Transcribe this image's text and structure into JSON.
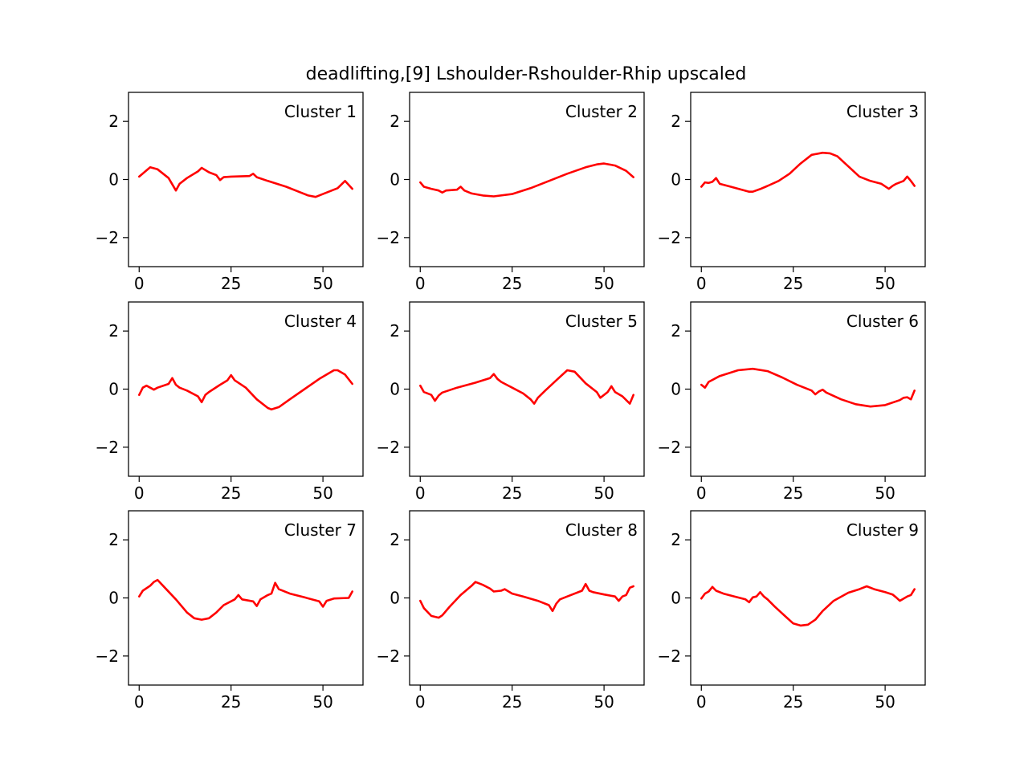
{
  "chart_data": {
    "type": "line",
    "title": "deadlifting,[9] Lshoulder-Rshoulder-Rhip upscaled",
    "series_color": "#ff0000",
    "xlim": [
      -2.9,
      60.9
    ],
    "ylim": [
      -3,
      3
    ],
    "xticks": [
      0,
      25,
      50
    ],
    "yticks": [
      2,
      0,
      -2
    ],
    "xtick_labels": [
      "0",
      "25",
      "50"
    ],
    "ytick_labels": [
      "2",
      "0",
      "−2"
    ],
    "grid": false,
    "panels": [
      {
        "label": "Cluster 1",
        "x": [
          0,
          3,
          5,
          8,
          10,
          11,
          13,
          16,
          17,
          19,
          21,
          22,
          23,
          25,
          30,
          31,
          32,
          35,
          40,
          44,
          46,
          48,
          50,
          54,
          56,
          58
        ],
        "y": [
          0.1,
          0.42,
          0.35,
          0.05,
          -0.38,
          -0.15,
          0.05,
          0.28,
          0.4,
          0.25,
          0.15,
          -0.02,
          0.08,
          0.1,
          0.12,
          0.2,
          0.08,
          -0.05,
          -0.25,
          -0.45,
          -0.55,
          -0.6,
          -0.5,
          -0.3,
          -0.05,
          -0.32
        ]
      },
      {
        "label": "Cluster 2",
        "x": [
          0,
          1,
          3,
          5,
          6,
          7,
          10,
          11,
          12,
          14,
          17,
          20,
          25,
          30,
          35,
          40,
          45,
          48,
          50,
          53,
          56,
          58
        ],
        "y": [
          -0.1,
          -0.25,
          -0.32,
          -0.38,
          -0.45,
          -0.38,
          -0.35,
          -0.25,
          -0.38,
          -0.48,
          -0.55,
          -0.58,
          -0.5,
          -0.3,
          -0.05,
          0.2,
          0.42,
          0.52,
          0.55,
          0.48,
          0.3,
          0.08
        ]
      },
      {
        "label": "Cluster 3",
        "x": [
          0,
          1,
          2,
          3,
          4,
          5,
          8,
          11,
          13,
          14,
          16,
          18,
          21,
          24,
          27,
          30,
          33,
          35,
          37,
          40,
          43,
          46,
          49,
          51,
          52,
          53,
          55,
          56,
          57,
          58
        ],
        "y": [
          -0.25,
          -0.1,
          -0.12,
          -0.08,
          0.05,
          -0.15,
          -0.25,
          -0.35,
          -0.42,
          -0.42,
          -0.33,
          -0.22,
          -0.05,
          0.2,
          0.55,
          0.85,
          0.92,
          0.9,
          0.8,
          0.45,
          0.1,
          -0.05,
          -0.15,
          -0.32,
          -0.22,
          -0.15,
          -0.05,
          0.1,
          -0.05,
          -0.22
        ]
      },
      {
        "label": "Cluster 4",
        "x": [
          0,
          1,
          2,
          4,
          5,
          8,
          9,
          10,
          11,
          13,
          16,
          17,
          18,
          19,
          22,
          24,
          25,
          26,
          29,
          32,
          35,
          36,
          38,
          41,
          45,
          49,
          53,
          54,
          56,
          58
        ],
        "y": [
          -0.2,
          0.05,
          0.12,
          -0.02,
          0.05,
          0.18,
          0.38,
          0.15,
          0.05,
          -0.05,
          -0.25,
          -0.45,
          -0.2,
          -0.1,
          0.15,
          0.3,
          0.48,
          0.3,
          0.05,
          -0.35,
          -0.65,
          -0.7,
          -0.62,
          -0.35,
          0.0,
          0.35,
          0.65,
          0.65,
          0.5,
          0.18
        ]
      },
      {
        "label": "Cluster 5",
        "x": [
          0,
          1,
          3,
          4,
          5,
          6,
          10,
          15,
          19,
          20,
          21,
          22,
          25,
          28,
          30,
          31,
          32,
          34,
          37,
          40,
          42,
          45,
          48,
          49,
          51,
          52,
          53,
          55,
          57,
          58
        ],
        "y": [
          0.12,
          -0.1,
          -0.2,
          -0.4,
          -0.22,
          -0.12,
          0.05,
          0.22,
          0.38,
          0.52,
          0.35,
          0.25,
          0.05,
          -0.15,
          -0.35,
          -0.5,
          -0.3,
          -0.05,
          0.3,
          0.65,
          0.6,
          0.2,
          -0.1,
          -0.3,
          -0.1,
          0.1,
          -0.1,
          -0.25,
          -0.5,
          -0.2
        ]
      },
      {
        "label": "Cluster 6",
        "x": [
          0,
          1,
          2,
          5,
          10,
          14,
          18,
          22,
          26,
          30,
          31,
          32,
          33,
          34,
          38,
          42,
          46,
          50,
          54,
          55,
          56,
          57,
          58
        ],
        "y": [
          0.15,
          0.05,
          0.25,
          0.45,
          0.65,
          0.7,
          0.62,
          0.4,
          0.15,
          -0.05,
          -0.18,
          -0.08,
          -0.02,
          -0.12,
          -0.35,
          -0.52,
          -0.6,
          -0.55,
          -0.38,
          -0.3,
          -0.28,
          -0.35,
          -0.05
        ]
      },
      {
        "label": "Cluster 7",
        "x": [
          0,
          1,
          3,
          4,
          5,
          7,
          10,
          13,
          15,
          17,
          19,
          21,
          23,
          26,
          27,
          28,
          31,
          32,
          33,
          35,
          36,
          37,
          38,
          41,
          45,
          49,
          50,
          51,
          53,
          57,
          58
        ],
        "y": [
          0.05,
          0.25,
          0.42,
          0.55,
          0.62,
          0.35,
          -0.05,
          -0.5,
          -0.7,
          -0.75,
          -0.7,
          -0.5,
          -0.25,
          -0.05,
          0.1,
          -0.05,
          -0.12,
          -0.28,
          -0.05,
          0.1,
          0.15,
          0.52,
          0.3,
          0.15,
          0.02,
          -0.12,
          -0.3,
          -0.1,
          -0.02,
          0.0,
          0.22
        ]
      },
      {
        "label": "Cluster 8",
        "x": [
          0,
          1,
          3,
          5,
          6,
          8,
          11,
          14,
          15,
          17,
          19,
          20,
          22,
          23,
          25,
          28,
          32,
          35,
          36,
          37,
          38,
          40,
          44,
          45,
          46,
          47,
          50,
          53,
          54,
          55,
          56,
          57,
          58
        ],
        "y": [
          -0.1,
          -0.35,
          -0.62,
          -0.68,
          -0.6,
          -0.3,
          0.1,
          0.42,
          0.55,
          0.45,
          0.32,
          0.22,
          0.25,
          0.3,
          0.15,
          0.05,
          -0.1,
          -0.25,
          -0.45,
          -0.2,
          -0.05,
          0.05,
          0.25,
          0.48,
          0.25,
          0.2,
          0.12,
          0.05,
          -0.1,
          0.05,
          0.1,
          0.35,
          0.4
        ]
      },
      {
        "label": "Cluster 9",
        "x": [
          0,
          1,
          2,
          3,
          4,
          6,
          9,
          12,
          13,
          14,
          15,
          16,
          17,
          18,
          20,
          23,
          25,
          27,
          29,
          31,
          33,
          36,
          40,
          43,
          45,
          47,
          50,
          52,
          53,
          54,
          56,
          57,
          58
        ],
        "y": [
          -0.02,
          0.15,
          0.22,
          0.38,
          0.25,
          0.15,
          0.05,
          -0.05,
          -0.15,
          0.02,
          0.05,
          0.2,
          0.05,
          -0.05,
          -0.3,
          -0.65,
          -0.88,
          -0.95,
          -0.92,
          -0.75,
          -0.45,
          -0.1,
          0.18,
          0.3,
          0.4,
          0.3,
          0.2,
          0.12,
          0.02,
          -0.1,
          0.05,
          0.1,
          0.3
        ]
      }
    ]
  }
}
